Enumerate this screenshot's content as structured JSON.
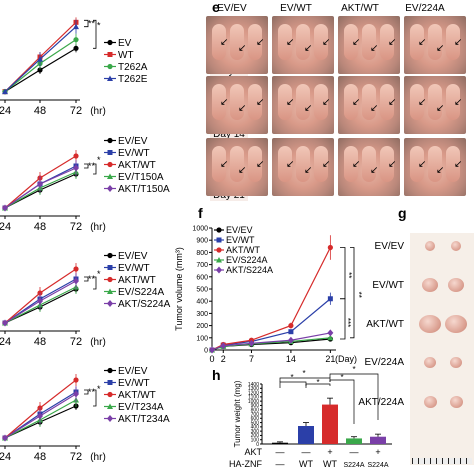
{
  "panel_e": {
    "label": "e",
    "columns": [
      "EV/EV",
      "EV/WT",
      "AKT/WT",
      "EV/224A"
    ],
    "rows": [
      "Day 7",
      "Day 14",
      "Day 21"
    ]
  },
  "panel_f": {
    "label": "f",
    "legend": [
      "EV/EV",
      "EV/WT",
      "AKT/WT",
      "EV/S224A",
      "AKT/S224A"
    ],
    "sig": [
      "**",
      "**",
      "***"
    ]
  },
  "panel_g": {
    "label": "g",
    "rows": [
      "EV/EV",
      "EV/WT",
      "AKT/WT",
      "EV/224A",
      "AKT/224A"
    ]
  },
  "panel_h": {
    "label": "h",
    "row_akt_label": "AKT",
    "row_znf_label": "HA-ZNF",
    "akt_marks": [
      "—",
      "—",
      "+",
      "—",
      "+"
    ],
    "znf_marks": [
      "—",
      "WT",
      "WT",
      "S224A",
      "S224A"
    ],
    "sig": [
      "*",
      "*",
      "*",
      "*",
      "*"
    ]
  },
  "left_charts": [
    {
      "legend": [
        "EV",
        "WT",
        "T262A",
        "T262E"
      ],
      "sig": [
        "**",
        "*"
      ]
    },
    {
      "legend": [
        "EV/EV",
        "EV/WT",
        "AKT/WT",
        "EV/T150A",
        "AKT/T150A"
      ],
      "sig": [
        "**",
        "*"
      ]
    },
    {
      "legend": [
        "EV/EV",
        "EV/WT",
        "AKT/WT",
        "EV/S224A",
        "AKT/S224A"
      ],
      "sig": [
        "**",
        "*"
      ]
    },
    {
      "legend": [
        "EV/EV",
        "EV/WT",
        "AKT/WT",
        "EV/T234A",
        "AKT/T234A"
      ],
      "sig": [
        "**",
        "*"
      ]
    }
  ],
  "left_xticks": [
    "24",
    "48",
    "72"
  ],
  "left_xunit": "(hr)",
  "colors": {
    "black": "#000000",
    "blue": "#2b3fa8",
    "red": "#d62b2b",
    "green": "#3aa84a",
    "purple": "#7a3fa8"
  },
  "chart_data": [
    {
      "type": "line",
      "title": "",
      "xlabel": "(hr)",
      "ylabel": "",
      "x": [
        24,
        48,
        72
      ],
      "series": [
        {
          "name": "EV",
          "color": "#000000",
          "values": [
            1.0,
            2.0,
            3.0
          ]
        },
        {
          "name": "WT",
          "color": "#d62b2b",
          "values": [
            1.0,
            2.6,
            4.2
          ]
        },
        {
          "name": "T262A",
          "color": "#3aa84a",
          "values": [
            1.0,
            2.3,
            3.4
          ]
        },
        {
          "name": "T262E",
          "color": "#2b3fa8",
          "values": [
            1.0,
            2.5,
            4.0
          ]
        }
      ]
    },
    {
      "type": "line",
      "title": "",
      "xlabel": "(hr)",
      "ylabel": "",
      "x": [
        24,
        48,
        72
      ],
      "series": [
        {
          "name": "EV/EV",
          "color": "#000000",
          "values": [
            1.0,
            1.9,
            2.7
          ]
        },
        {
          "name": "EV/WT",
          "color": "#2b3fa8",
          "values": [
            1.0,
            2.2,
            3.1
          ]
        },
        {
          "name": "AKT/WT",
          "color": "#d62b2b",
          "values": [
            1.0,
            2.5,
            3.6
          ]
        },
        {
          "name": "EV/T150A",
          "color": "#3aa84a",
          "values": [
            1.0,
            2.0,
            2.8
          ]
        },
        {
          "name": "AKT/T150A",
          "color": "#7a3fa8",
          "values": [
            1.0,
            2.2,
            3.0
          ]
        }
      ]
    },
    {
      "type": "line",
      "title": "",
      "xlabel": "(hr)",
      "ylabel": "",
      "x": [
        24,
        48,
        72
      ],
      "series": [
        {
          "name": "EV/EV",
          "color": "#000000",
          "values": [
            1.0,
            1.8,
            2.7
          ]
        },
        {
          "name": "EV/WT",
          "color": "#2b3fa8",
          "values": [
            1.0,
            2.2,
            3.2
          ]
        },
        {
          "name": "AKT/WT",
          "color": "#d62b2b",
          "values": [
            1.0,
            2.5,
            3.7
          ]
        },
        {
          "name": "EV/S224A",
          "color": "#3aa84a",
          "values": [
            1.0,
            1.9,
            2.8
          ]
        },
        {
          "name": "AKT/S224A",
          "color": "#7a3fa8",
          "values": [
            1.0,
            2.1,
            3.1
          ]
        }
      ]
    },
    {
      "type": "line",
      "title": "",
      "xlabel": "(hr)",
      "ylabel": "",
      "x": [
        24,
        48,
        72
      ],
      "series": [
        {
          "name": "EV/EV",
          "color": "#000000",
          "values": [
            1.0,
            1.8,
            2.6
          ]
        },
        {
          "name": "EV/WT",
          "color": "#2b3fa8",
          "values": [
            1.0,
            2.2,
            3.3
          ]
        },
        {
          "name": "AKT/WT",
          "color": "#d62b2b",
          "values": [
            1.0,
            2.5,
            3.9
          ]
        },
        {
          "name": "EV/T234A",
          "color": "#3aa84a",
          "values": [
            1.0,
            1.9,
            2.9
          ]
        },
        {
          "name": "AKT/T234A",
          "color": "#7a3fa8",
          "values": [
            1.0,
            2.1,
            3.2
          ]
        }
      ]
    },
    {
      "type": "line",
      "title": "",
      "xlabel": "(Day)",
      "ylabel": "Tumor volume (mm³)",
      "x": [
        0,
        2,
        7,
        14,
        21
      ],
      "xticks": [
        "0",
        "2",
        "7",
        "14",
        "21"
      ],
      "yticks": [
        "0",
        "100",
        "200",
        "300",
        "400",
        "500",
        "600",
        "700",
        "800",
        "900",
        "1000"
      ],
      "ylim": [
        0,
        1000
      ],
      "series": [
        {
          "name": "EV/EV",
          "color": "#000000",
          "values": [
            0,
            30,
            45,
            60,
            90
          ]
        },
        {
          "name": "EV/WT",
          "color": "#2b3fa8",
          "values": [
            0,
            40,
            70,
            150,
            420
          ]
        },
        {
          "name": "AKT/WT",
          "color": "#d62b2b",
          "values": [
            0,
            45,
            80,
            200,
            840
          ]
        },
        {
          "name": "EV/S224A",
          "color": "#3aa84a",
          "values": [
            0,
            30,
            50,
            70,
            100
          ]
        },
        {
          "name": "AKT/S224A",
          "color": "#7a3fa8",
          "values": [
            0,
            35,
            55,
            80,
            140
          ]
        }
      ]
    },
    {
      "type": "bar",
      "title": "",
      "xlabel": "",
      "ylabel": "Tumor weight (mg)",
      "categories": [
        "EV/EV",
        "EV/WT",
        "AKT/WT",
        "EV/S224A",
        "AKT/S224A"
      ],
      "values": [
        30,
        420,
        920,
        130,
        170
      ],
      "errors": [
        20,
        80,
        150,
        40,
        60
      ],
      "colors": [
        "#000000",
        "#2b3fa8",
        "#d62b2b",
        "#3aa84a",
        "#7a3fa8"
      ],
      "yticks": [
        "0",
        "100",
        "200",
        "300",
        "400",
        "500",
        "600",
        "700",
        "800",
        "900",
        "1000",
        "1100",
        "1200",
        "1300",
        "1400"
      ],
      "ylim": [
        0,
        1400
      ]
    }
  ]
}
